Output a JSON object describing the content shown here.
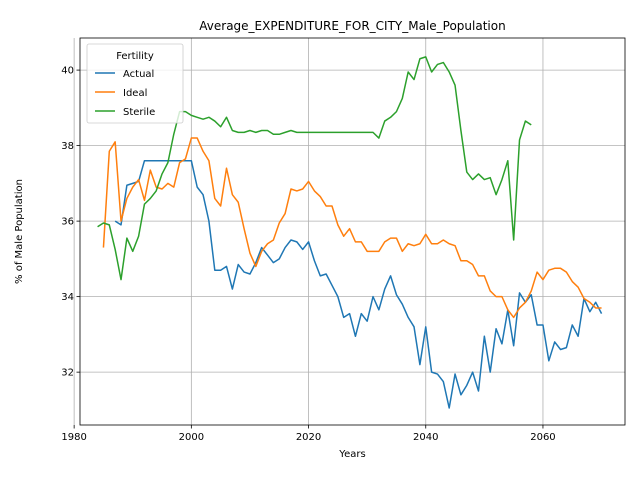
{
  "chart_data": {
    "type": "line",
    "title": "Average_EXPENDITURE_FOR_CITY_Male_Population",
    "xlabel": "Years",
    "ylabel": "% of Male Population",
    "xlim": [
      1981,
      2074
    ],
    "ylim": [
      30.6,
      40.85
    ],
    "xticks": [
      1980,
      2000,
      2020,
      2040,
      2060
    ],
    "yticks": [
      32,
      34,
      36,
      38,
      40
    ],
    "grid": true,
    "legend": {
      "title": "Fertility",
      "placement": "top-left"
    },
    "series": [
      {
        "name": "Actual",
        "color": "#1f77b4",
        "x": [
          1987,
          1988,
          1989,
          1990,
          1991,
          1992,
          1993,
          1994,
          1995,
          1996,
          1997,
          1998,
          1999,
          2000,
          2001,
          2002,
          2003,
          2004,
          2005,
          2006,
          2007,
          2008,
          2009,
          2010,
          2011,
          2012,
          2013,
          2014,
          2015,
          2016,
          2017,
          2018,
          2019,
          2020,
          2021,
          2022,
          2023,
          2024,
          2025,
          2026,
          2027,
          2028,
          2029,
          2030,
          2031,
          2032,
          2033,
          2034,
          2035,
          2036,
          2037,
          2038,
          2039,
          2040,
          2041,
          2042,
          2043,
          2044,
          2045,
          2046,
          2047,
          2048,
          2049,
          2050,
          2051,
          2052,
          2053,
          2054,
          2055,
          2056,
          2057,
          2058,
          2059,
          2060,
          2061,
          2062,
          2063,
          2064,
          2065,
          2066,
          2067,
          2068,
          2069,
          2070
        ],
        "y": [
          36.0,
          35.9,
          36.95,
          37.0,
          37.05,
          37.6,
          37.6,
          37.6,
          37.6,
          37.6,
          37.6,
          37.6,
          37.6,
          37.6,
          36.9,
          36.7,
          36.0,
          34.7,
          34.7,
          34.8,
          34.2,
          34.85,
          34.65,
          34.6,
          34.9,
          35.3,
          35.1,
          34.9,
          35.0,
          35.3,
          35.5,
          35.45,
          35.25,
          35.45,
          34.95,
          34.55,
          34.6,
          34.3,
          34.0,
          33.45,
          33.55,
          32.95,
          33.55,
          33.35,
          34.0,
          33.65,
          34.2,
          34.55,
          34.05,
          33.8,
          33.45,
          33.2,
          32.2,
          33.2,
          32.0,
          31.95,
          31.75,
          31.05,
          31.95,
          31.4,
          31.65,
          32.0,
          31.5,
          32.95,
          32.0,
          33.15,
          32.75,
          33.65,
          32.7,
          34.1,
          33.85,
          34.05,
          33.25,
          33.25,
          32.3,
          32.8,
          32.6,
          32.65,
          33.25,
          32.95,
          33.95,
          33.6,
          33.85,
          33.55
        ]
      },
      {
        "name": "Ideal",
        "color": "#ff7f0e",
        "x": [
          1985,
          1986,
          1987,
          1988,
          1989,
          1990,
          1991,
          1992,
          1993,
          1994,
          1995,
          1996,
          1997,
          1998,
          1999,
          2000,
          2001,
          2002,
          2003,
          2004,
          2005,
          2006,
          2007,
          2008,
          2009,
          2010,
          2011,
          2012,
          2013,
          2014,
          2015,
          2016,
          2017,
          2018,
          2019,
          2020,
          2021,
          2022,
          2023,
          2024,
          2025,
          2026,
          2027,
          2028,
          2029,
          2030,
          2031,
          2032,
          2033,
          2034,
          2035,
          2036,
          2037,
          2038,
          2039,
          2040,
          2041,
          2042,
          2043,
          2044,
          2045,
          2046,
          2047,
          2048,
          2049,
          2050,
          2051,
          2052,
          2053,
          2054,
          2055,
          2056,
          2057,
          2058,
          2059,
          2060,
          2061,
          2062,
          2063,
          2064,
          2065,
          2066,
          2067,
          2068,
          2069,
          2070
        ],
        "y": [
          35.3,
          37.85,
          38.1,
          36.0,
          36.6,
          36.9,
          37.1,
          36.55,
          37.35,
          36.9,
          36.85,
          37.0,
          36.9,
          37.55,
          37.65,
          38.2,
          38.2,
          37.85,
          37.6,
          36.6,
          36.4,
          37.4,
          36.7,
          36.5,
          35.8,
          35.15,
          34.8,
          35.2,
          35.4,
          35.5,
          35.95,
          36.2,
          36.85,
          36.8,
          36.85,
          37.05,
          36.8,
          36.65,
          36.4,
          36.4,
          35.9,
          35.6,
          35.8,
          35.45,
          35.45,
          35.2,
          35.2,
          35.2,
          35.45,
          35.55,
          35.55,
          35.2,
          35.4,
          35.35,
          35.4,
          35.65,
          35.4,
          35.4,
          35.5,
          35.4,
          35.35,
          34.95,
          34.95,
          34.85,
          34.55,
          34.55,
          34.15,
          34.0,
          34.0,
          33.65,
          33.45,
          33.7,
          33.85,
          34.15,
          34.65,
          34.45,
          34.7,
          34.75,
          34.75,
          34.65,
          34.4,
          34.25,
          33.95,
          33.85,
          33.7,
          33.7
        ]
      },
      {
        "name": "Sterile",
        "color": "#2ca02c",
        "x": [
          1984,
          1985,
          1986,
          1987,
          1988,
          1989,
          1990,
          1991,
          1992,
          1993,
          1994,
          1995,
          1996,
          1997,
          1998,
          1999,
          2000,
          2001,
          2002,
          2003,
          2004,
          2005,
          2006,
          2007,
          2008,
          2009,
          2010,
          2011,
          2012,
          2013,
          2014,
          2015,
          2016,
          2017,
          2018,
          2019,
          2020,
          2021,
          2022,
          2023,
          2024,
          2025,
          2026,
          2027,
          2028,
          2029,
          2030,
          2031,
          2032,
          2033,
          2034,
          2035,
          2036,
          2037,
          2038,
          2039,
          2040,
          2041,
          2042,
          2043,
          2044,
          2045,
          2046,
          2047,
          2048,
          2049,
          2050,
          2051,
          2052,
          2053,
          2054,
          2055,
          2056,
          2057,
          2058
        ],
        "y": [
          35.85,
          35.95,
          35.9,
          35.25,
          34.45,
          35.55,
          35.2,
          35.6,
          36.45,
          36.6,
          36.8,
          37.25,
          37.55,
          38.3,
          38.9,
          38.9,
          38.8,
          38.75,
          38.7,
          38.75,
          38.65,
          38.5,
          38.75,
          38.4,
          38.35,
          38.35,
          38.4,
          38.35,
          38.4,
          38.4,
          38.3,
          38.3,
          38.35,
          38.4,
          38.35,
          38.35,
          38.35,
          38.35,
          38.35,
          38.35,
          38.35,
          38.35,
          38.35,
          38.35,
          38.35,
          38.35,
          38.35,
          38.35,
          38.2,
          38.65,
          38.75,
          38.9,
          39.25,
          39.95,
          39.75,
          40.3,
          40.35,
          39.95,
          40.15,
          40.2,
          39.95,
          39.6,
          38.4,
          37.3,
          37.1,
          37.25,
          37.1,
          37.15,
          36.7,
          37.1,
          37.6,
          35.5,
          38.15,
          38.65,
          38.55
        ]
      }
    ]
  }
}
